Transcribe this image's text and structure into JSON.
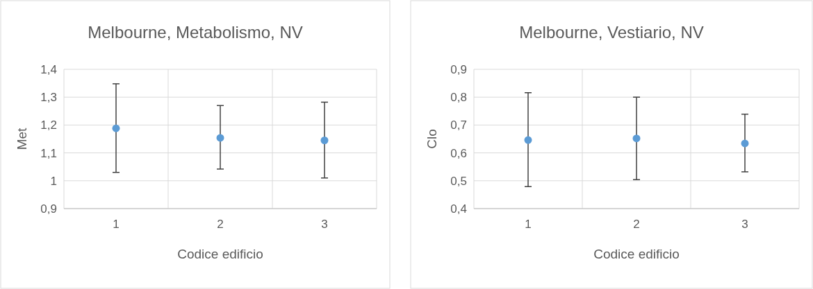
{
  "chart_data": [
    {
      "type": "scatter",
      "title": "Melbourne, Metabolismo, NV",
      "xlabel": "Codice edificio",
      "ylabel": "Met",
      "categories": [
        "1",
        "2",
        "3"
      ],
      "values": [
        1.188,
        1.154,
        1.145
      ],
      "errors": [
        [
          1.03,
          1.348
        ],
        [
          1.042,
          1.27
        ],
        [
          1.01,
          1.282
        ]
      ],
      "color": "#5b9bd5",
      "marker": "circle",
      "ylim": [
        0.9,
        1.4
      ],
      "yticks": [
        {
          "value": 0.9,
          "label": "0,9"
        },
        {
          "value": 1,
          "label": "1"
        },
        {
          "value": 1.1,
          "label": "1,1"
        },
        {
          "value": 1.2,
          "label": "1,2"
        },
        {
          "value": 1.3,
          "label": "1,3"
        },
        {
          "value": 1.4,
          "label": "1,4"
        }
      ],
      "grid": true
    },
    {
      "type": "scatter",
      "title": "Melbourne, Vestiario, NV",
      "xlabel": "Codice edificio",
      "ylabel": "Clo",
      "categories": [
        "1",
        "2",
        "3"
      ],
      "values": [
        0.646,
        0.652,
        0.634
      ],
      "errors": [
        [
          0.479,
          0.816
        ],
        [
          0.504,
          0.8
        ],
        [
          0.532,
          0.739
        ]
      ],
      "color": "#5b9bd5",
      "marker": "circle",
      "ylim": [
        0.4,
        0.9
      ],
      "yticks": [
        {
          "value": 0.4,
          "label": "0,4"
        },
        {
          "value": 0.5,
          "label": "0,5"
        },
        {
          "value": 0.6,
          "label": "0,6"
        },
        {
          "value": 0.7,
          "label": "0,7"
        },
        {
          "value": 0.8,
          "label": "0,8"
        },
        {
          "value": 0.9,
          "label": "0,9"
        }
      ],
      "grid": true
    }
  ]
}
